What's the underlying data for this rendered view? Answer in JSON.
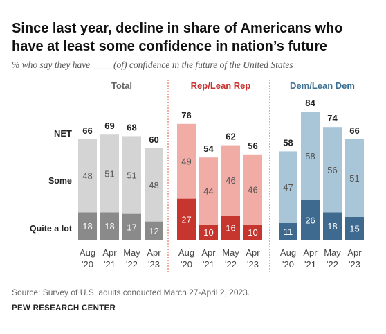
{
  "title_line1": "Since last year, decline in share of Americans who",
  "title_line2": "have at least some confidence in nation’s future",
  "subtitle": "% who say they have ____ (of) confidence in the future of the United States",
  "row_labels": {
    "net": "NET",
    "some": "Some",
    "quite": "Quite a lot"
  },
  "source": "Survey of U.S. adults conducted March 27-April 2, 2023.",
  "source_prefix": "Source: ",
  "org": "PEW RESEARCH CENTER",
  "chart_data": {
    "type": "bar",
    "stacked": true,
    "categories_line1": [
      "Aug",
      "Apr",
      "May",
      "Apr"
    ],
    "categories_line2": [
      "'20",
      "'21",
      "'22",
      "'23"
    ],
    "categories": [
      "Aug '20",
      "Apr '21",
      "May '22",
      "Apr '23"
    ],
    "panels": [
      {
        "title": "Total",
        "title_color": "#666666",
        "net": [
          66,
          69,
          68,
          60
        ],
        "series": [
          {
            "name": "Quite a lot",
            "values": [
              18,
              18,
              17,
              12
            ],
            "color": "#8a8a8a"
          },
          {
            "name": "Some",
            "values": [
              48,
              51,
              51,
              48
            ],
            "color": "#d4d4d4"
          }
        ]
      },
      {
        "title": "Rep/Lean Rep",
        "title_color": "#c8312f",
        "net": [
          76,
          54,
          62,
          56
        ],
        "series": [
          {
            "name": "Quite a lot",
            "values": [
              27,
              10,
              16,
              10
            ],
            "color": "#c7352f"
          },
          {
            "name": "Some",
            "values": [
              49,
              44,
              46,
              46
            ],
            "color": "#f1aca6"
          }
        ]
      },
      {
        "title": "Dem/Lean Dem",
        "title_color": "#3a6f93",
        "net": [
          58,
          84,
          74,
          66
        ],
        "series": [
          {
            "name": "Quite a lot",
            "values": [
              11,
              26,
              18,
              15
            ],
            "color": "#3e6a8f"
          },
          {
            "name": "Some",
            "values": [
              47,
              58,
              56,
              51
            ],
            "color": "#a8c6d8"
          }
        ]
      }
    ],
    "ylim": [
      0,
      100
    ],
    "grid": false
  }
}
